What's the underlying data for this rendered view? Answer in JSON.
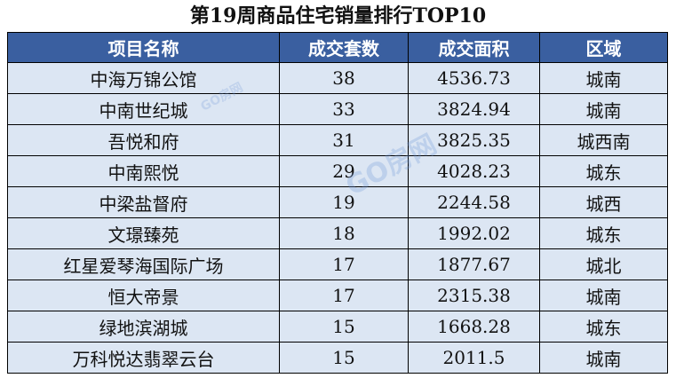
{
  "title": "第19周商品住宅销量排行TOP10",
  "table": {
    "headers": [
      "项目名称",
      "成交套数",
      "成交面积",
      "区域"
    ],
    "rows": [
      [
        "中海万锦公馆",
        "38",
        "4536.73",
        "城南"
      ],
      [
        "中南世纪城",
        "33",
        "3824.94",
        "城南"
      ],
      [
        "吾悦和府",
        "31",
        "3825.35",
        "城西南"
      ],
      [
        "中南熙悦",
        "29",
        "4028.23",
        "城东"
      ],
      [
        "中梁盐督府",
        "19",
        "2244.58",
        "城西"
      ],
      [
        "文璟臻苑",
        "18",
        "1992.02",
        "城东"
      ],
      [
        "红星爱琴海国际广场",
        "17",
        "1877.67",
        "城北"
      ],
      [
        "恒大帝景",
        "17",
        "2315.38",
        "城南"
      ],
      [
        "绿地滨湖城",
        "15",
        "1668.28",
        "城东"
      ],
      [
        "万科悦达翡翠云台",
        "15",
        "2011.5",
        "城南"
      ]
    ]
  },
  "watermark": {
    "main": "GO房网",
    "small": "GO房网"
  },
  "colors": {
    "header_bg": "#3a5fa0",
    "row_bg": "#dce6f3"
  }
}
